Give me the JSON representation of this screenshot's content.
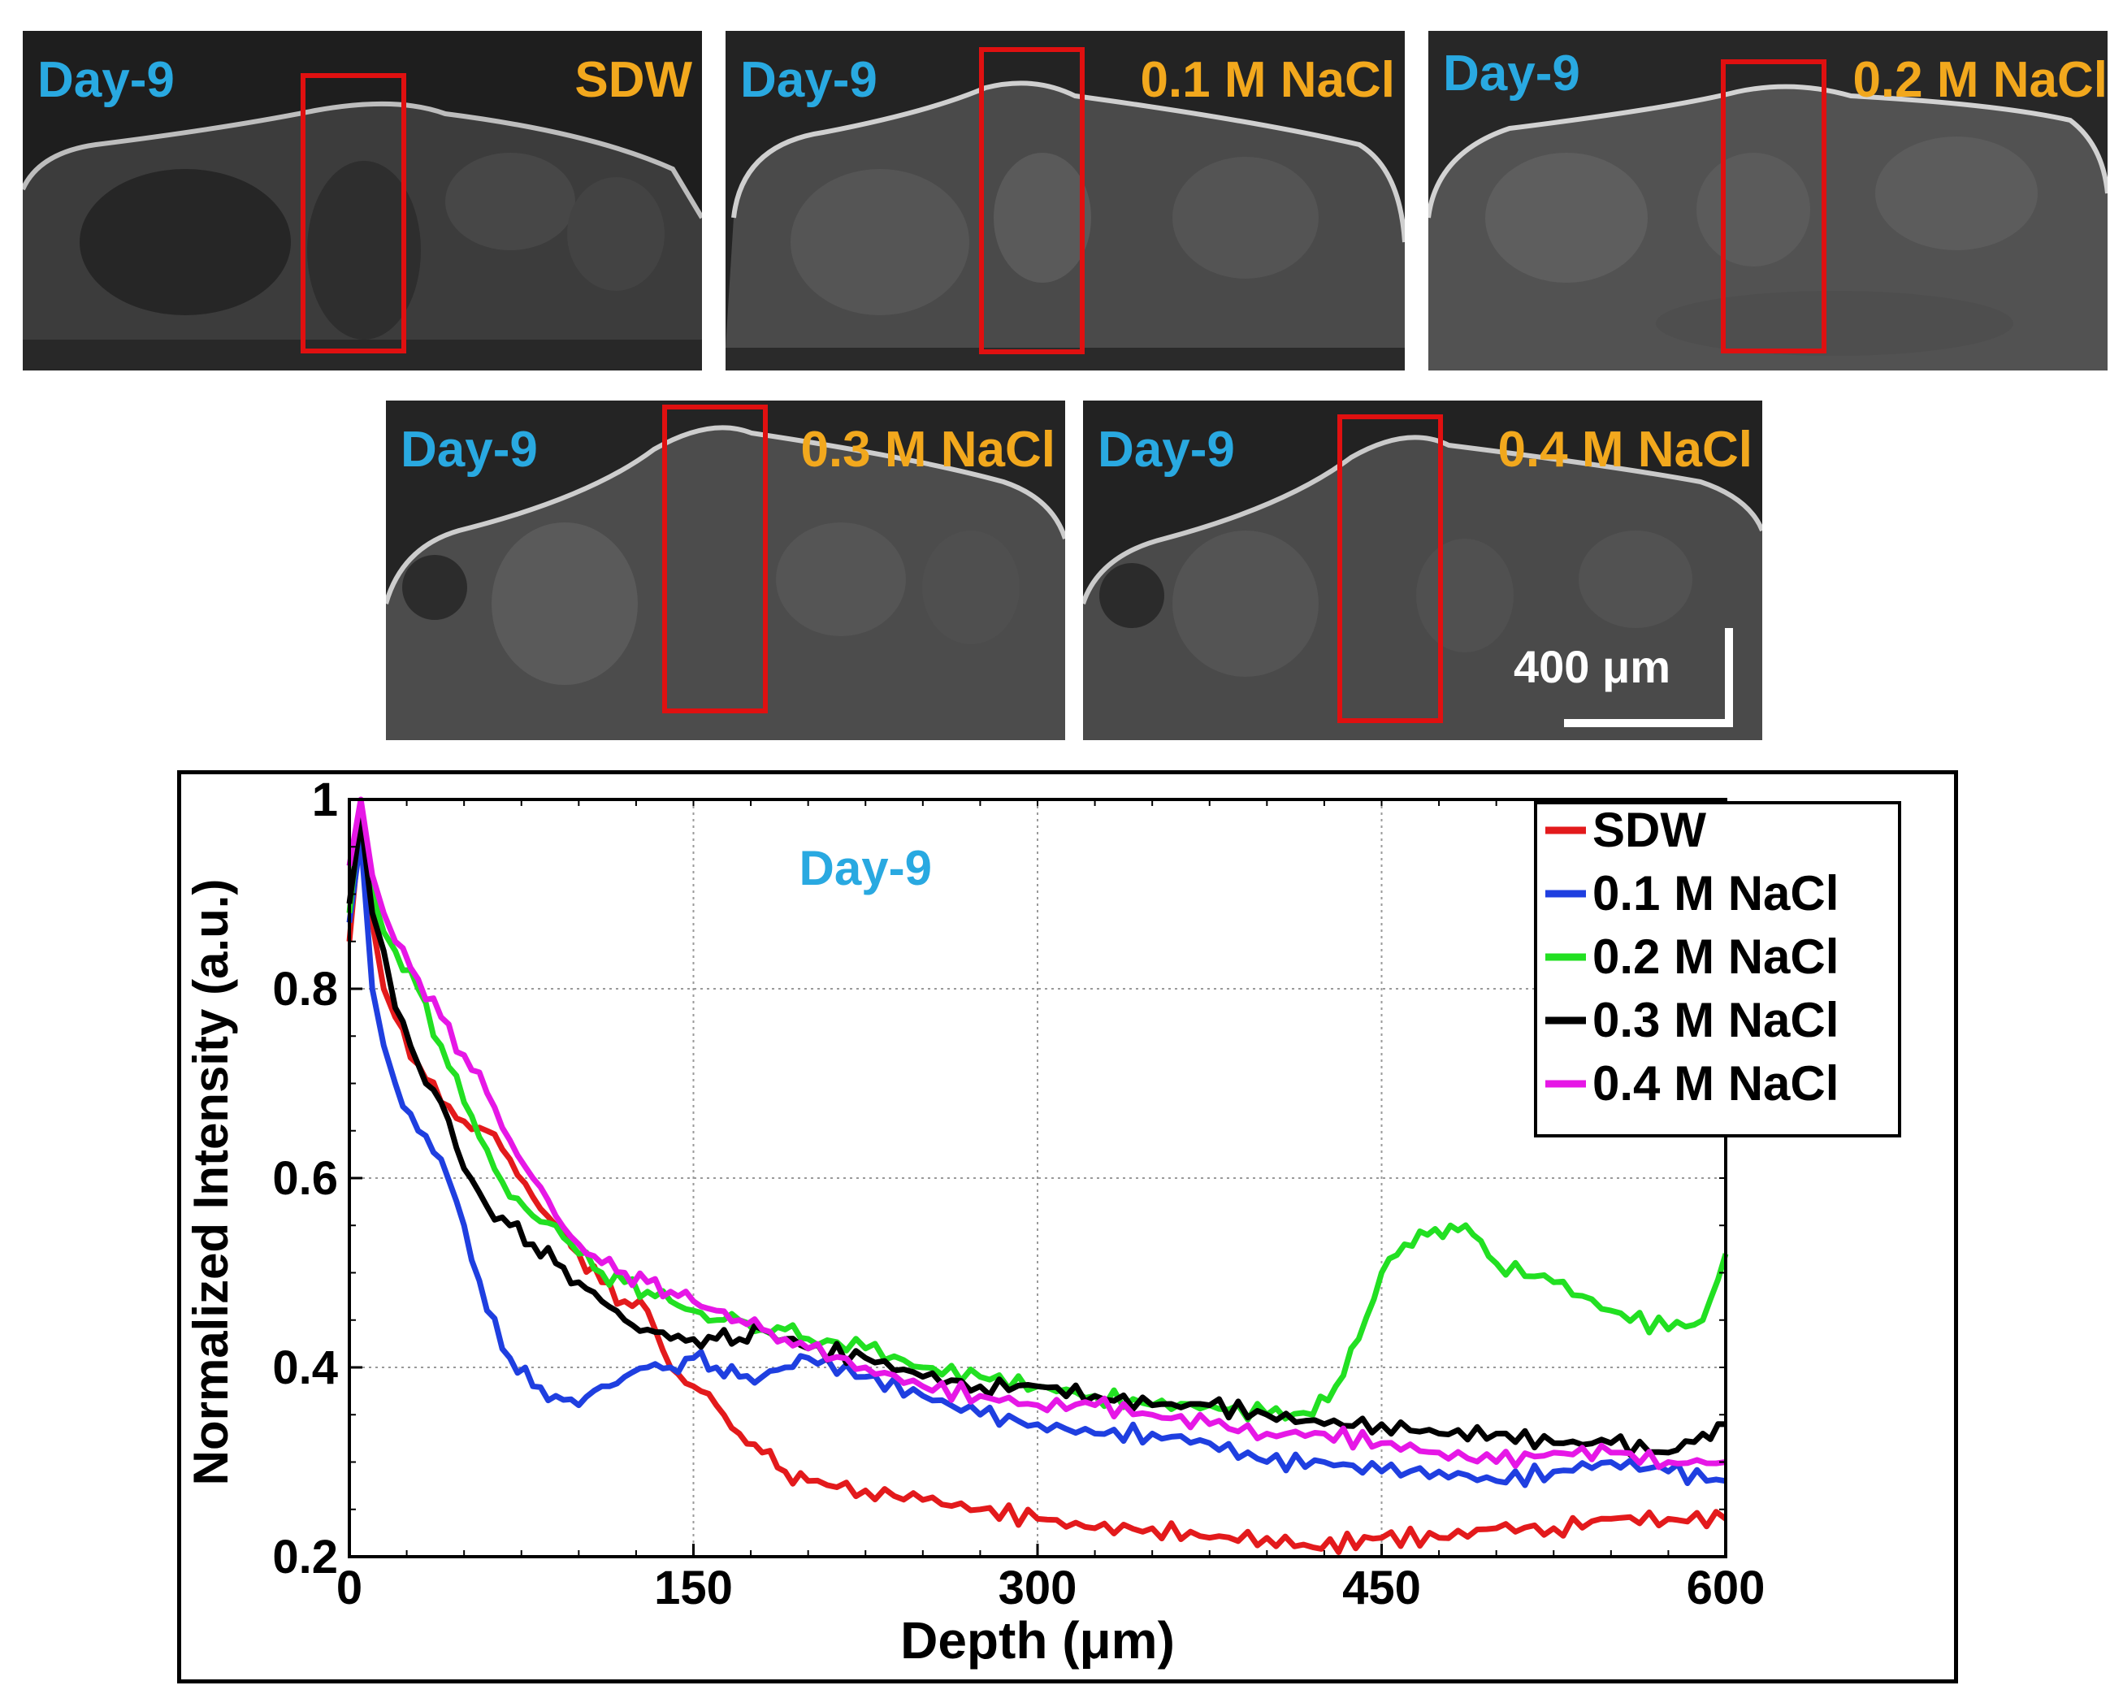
{
  "panels": [
    {
      "day": "Day-9",
      "condition": "SDW"
    },
    {
      "day": "Day-9",
      "condition": "0.1 M NaCl"
    },
    {
      "day": "Day-9",
      "condition": "0.2 M NaCl"
    },
    {
      "day": "Day-9",
      "condition": "0.3 M NaCl"
    },
    {
      "day": "Day-9",
      "condition": "0.4 M NaCl"
    }
  ],
  "scale_bar": {
    "label": "400 μm"
  },
  "chart_data": {
    "type": "line",
    "annotation": "Day-9",
    "xlabel": "Depth (μm)",
    "ylabel": "Normalized Intensity (a.u.)",
    "xlim": [
      0,
      600
    ],
    "ylim": [
      0.2,
      1
    ],
    "xticks": [
      0,
      150,
      300,
      450,
      600
    ],
    "yticks": [
      0.2,
      0.4,
      0.6,
      0.8,
      1
    ],
    "ytick_labels": [
      "0.2",
      "0.4",
      "0.6",
      "0.8",
      "1"
    ],
    "grid": true,
    "legend_position": "top-right",
    "series": [
      {
        "name": "SDW",
        "color": "#e31a1c",
        "x": [
          0,
          5,
          10,
          15,
          20,
          30,
          40,
          50,
          60,
          70,
          80,
          90,
          100,
          110,
          120,
          130,
          140,
          150,
          160,
          170,
          180,
          190,
          200,
          225,
          250,
          275,
          300,
          325,
          350,
          375,
          400,
          420,
          450,
          475,
          500,
          525,
          550,
          575,
          600
        ],
        "y": [
          0.85,
          0.98,
          0.87,
          0.8,
          0.77,
          0.72,
          0.68,
          0.66,
          0.65,
          0.62,
          0.58,
          0.55,
          0.52,
          0.49,
          0.47,
          0.46,
          0.4,
          0.38,
          0.36,
          0.33,
          0.31,
          0.29,
          0.28,
          0.27,
          0.26,
          0.25,
          0.24,
          0.23,
          0.23,
          0.22,
          0.22,
          0.21,
          0.22,
          0.22,
          0.23,
          0.23,
          0.24,
          0.24,
          0.24
        ]
      },
      {
        "name": "0.1 M NaCl",
        "color": "#1f3fe0",
        "x": [
          0,
          5,
          10,
          15,
          20,
          30,
          40,
          50,
          60,
          70,
          80,
          90,
          100,
          110,
          120,
          130,
          140,
          150,
          160,
          170,
          180,
          190,
          200,
          225,
          250,
          275,
          300,
          325,
          350,
          375,
          400,
          425,
          450,
          475,
          500,
          525,
          550,
          575,
          600
        ],
        "y": [
          0.87,
          0.96,
          0.8,
          0.74,
          0.7,
          0.65,
          0.62,
          0.55,
          0.46,
          0.41,
          0.38,
          0.37,
          0.36,
          0.38,
          0.39,
          0.4,
          0.4,
          0.41,
          0.4,
          0.39,
          0.39,
          0.4,
          0.41,
          0.39,
          0.37,
          0.35,
          0.34,
          0.33,
          0.33,
          0.32,
          0.3,
          0.3,
          0.29,
          0.29,
          0.28,
          0.29,
          0.3,
          0.29,
          0.28
        ]
      },
      {
        "name": "0.2 M NaCl",
        "color": "#22e022",
        "x": [
          0,
          5,
          10,
          15,
          20,
          30,
          40,
          50,
          60,
          70,
          80,
          90,
          100,
          110,
          120,
          130,
          140,
          150,
          160,
          170,
          180,
          190,
          200,
          225,
          250,
          275,
          300,
          325,
          350,
          375,
          400,
          420,
          430,
          440,
          450,
          460,
          470,
          480,
          490,
          500,
          525,
          550,
          575,
          590,
          600
        ],
        "y": [
          0.88,
          0.99,
          0.9,
          0.86,
          0.84,
          0.8,
          0.74,
          0.68,
          0.63,
          0.58,
          0.56,
          0.55,
          0.52,
          0.5,
          0.49,
          0.48,
          0.47,
          0.46,
          0.45,
          0.45,
          0.44,
          0.44,
          0.43,
          0.42,
          0.4,
          0.39,
          0.38,
          0.37,
          0.36,
          0.36,
          0.35,
          0.35,
          0.38,
          0.43,
          0.5,
          0.53,
          0.54,
          0.55,
          0.54,
          0.51,
          0.49,
          0.46,
          0.44,
          0.45,
          0.52
        ]
      },
      {
        "name": "0.3 M NaCl",
        "color": "#000000",
        "x": [
          0,
          5,
          10,
          15,
          20,
          30,
          40,
          50,
          60,
          70,
          80,
          90,
          100,
          110,
          120,
          130,
          140,
          150,
          160,
          170,
          180,
          190,
          200,
          225,
          250,
          275,
          300,
          325,
          350,
          375,
          400,
          425,
          450,
          475,
          500,
          525,
          550,
          575,
          590,
          600
        ],
        "y": [
          0.89,
          0.98,
          0.88,
          0.84,
          0.78,
          0.72,
          0.68,
          0.61,
          0.57,
          0.55,
          0.53,
          0.51,
          0.49,
          0.47,
          0.45,
          0.44,
          0.43,
          0.43,
          0.43,
          0.43,
          0.44,
          0.43,
          0.42,
          0.41,
          0.39,
          0.38,
          0.38,
          0.37,
          0.36,
          0.36,
          0.35,
          0.34,
          0.34,
          0.33,
          0.33,
          0.32,
          0.32,
          0.31,
          0.33,
          0.34
        ]
      },
      {
        "name": "0.4 M NaCl",
        "color": "#e617e6",
        "x": [
          0,
          5,
          10,
          15,
          20,
          30,
          40,
          50,
          60,
          70,
          80,
          90,
          100,
          110,
          120,
          130,
          140,
          150,
          160,
          170,
          180,
          190,
          200,
          225,
          250,
          275,
          300,
          325,
          350,
          375,
          400,
          425,
          450,
          475,
          500,
          525,
          550,
          575,
          600
        ],
        "y": [
          0.93,
          1.0,
          0.92,
          0.88,
          0.85,
          0.81,
          0.77,
          0.73,
          0.69,
          0.64,
          0.6,
          0.56,
          0.53,
          0.51,
          0.5,
          0.49,
          0.48,
          0.47,
          0.46,
          0.45,
          0.44,
          0.43,
          0.42,
          0.4,
          0.38,
          0.37,
          0.36,
          0.36,
          0.35,
          0.34,
          0.33,
          0.33,
          0.32,
          0.31,
          0.3,
          0.31,
          0.31,
          0.3,
          0.3
        ]
      }
    ]
  }
}
